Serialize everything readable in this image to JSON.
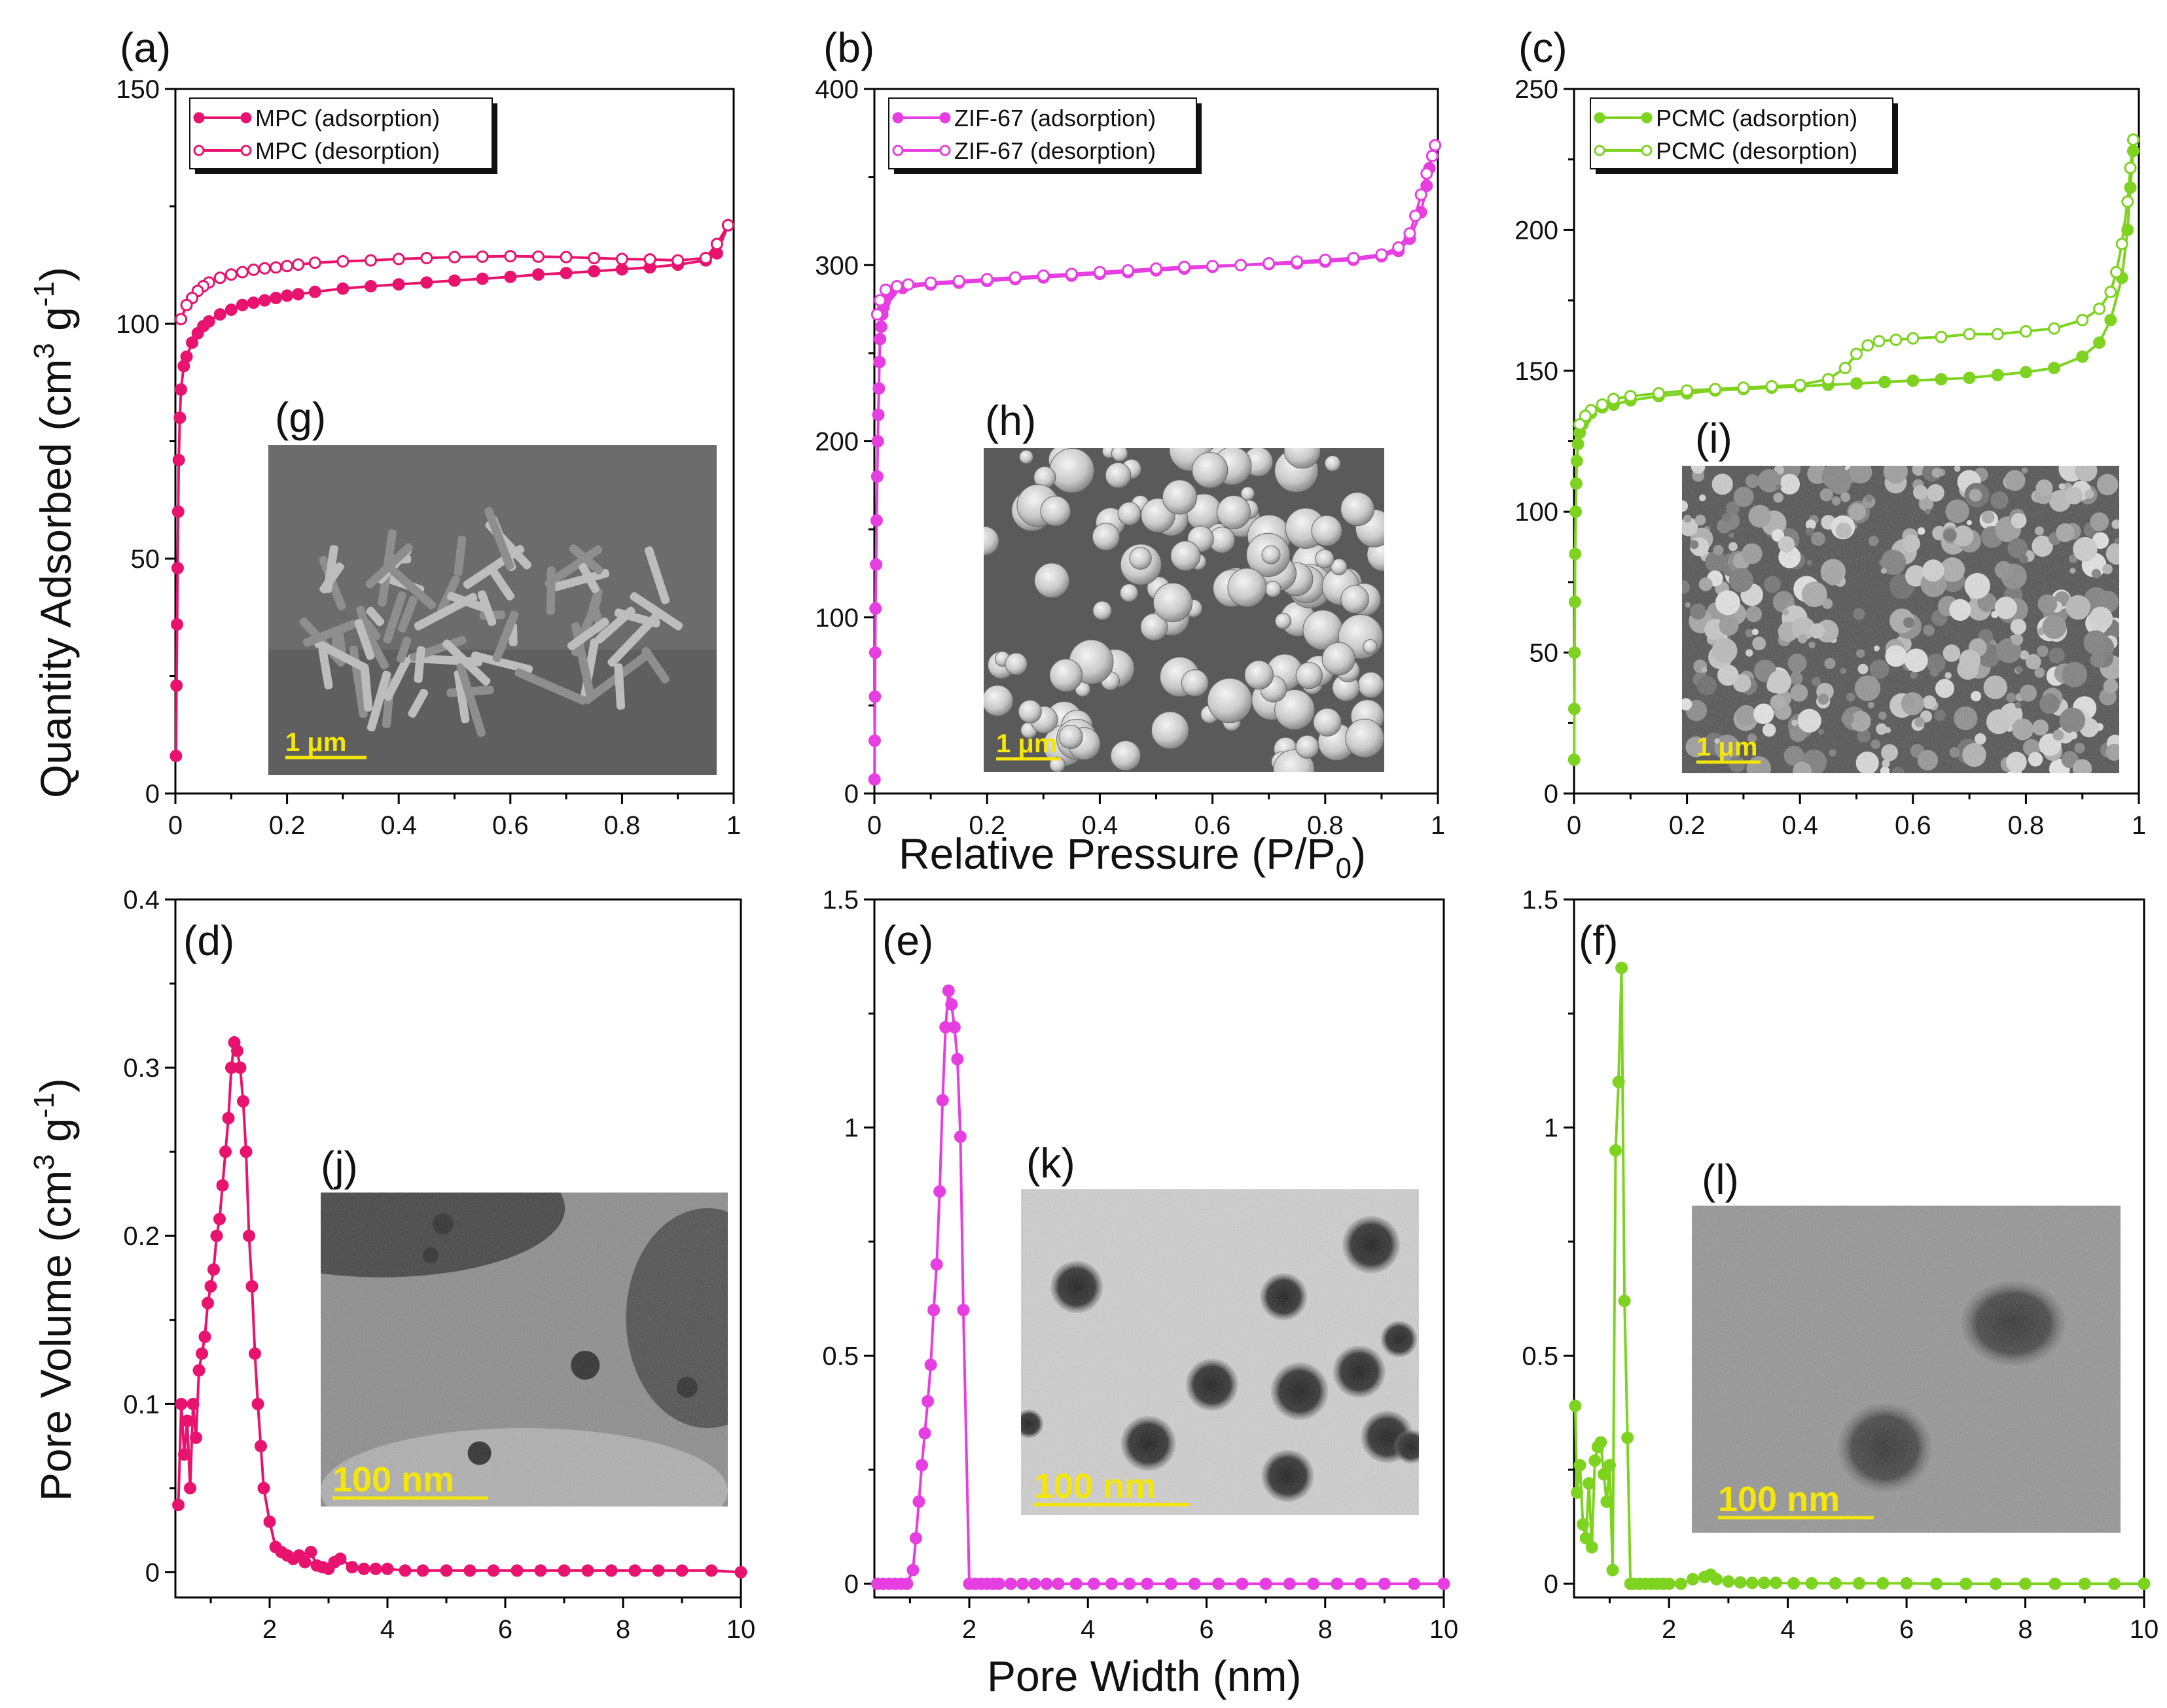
{
  "figure": {
    "xlabel_top": "Relative Pressure (P/P",
    "xlabel_top_sub": "0",
    "xlabel_top_close": ")",
    "ylabel_top": "Quantity Adsorbed (cm",
    "ylabel_top_sup": "3",
    "ylabel_top_mid": " g",
    "ylabel_top_sup2": "-1",
    "ylabel_top_close": ")",
    "xlabel_bottom": "Pore Width (nm)",
    "ylabel_bottom": "Pore Volume (cm",
    "ylabel_bottom_sup": "3",
    "ylabel_bottom_mid": " g",
    "ylabel_bottom_sup2": "-1",
    "ylabel_bottom_close": ")"
  },
  "colors": {
    "mpc": "#e8136e",
    "zif": "#e63ee0",
    "pcmc": "#7ed321",
    "scale_text": "#f5e60a"
  },
  "chart_data": [
    {
      "id": "a",
      "panel_label": "(a)",
      "type": "line",
      "xlim": [
        0,
        1
      ],
      "ylim": [
        0,
        150
      ],
      "xticks": [
        0,
        0.2,
        0.4,
        0.6,
        0.8,
        1
      ],
      "yticks": [
        0,
        50,
        100,
        150
      ],
      "series": [
        {
          "name": "MPC (adsorption)",
          "marker": "filled",
          "x": [
            0.001,
            0.002,
            0.003,
            0.004,
            0.005,
            0.006,
            0.008,
            0.01,
            0.015,
            0.02,
            0.03,
            0.04,
            0.05,
            0.06,
            0.08,
            0.1,
            0.12,
            0.14,
            0.16,
            0.18,
            0.2,
            0.22,
            0.25,
            0.3,
            0.35,
            0.4,
            0.45,
            0.5,
            0.55,
            0.6,
            0.65,
            0.7,
            0.75,
            0.8,
            0.85,
            0.9,
            0.95,
            0.97,
            0.99
          ],
          "y": [
            8,
            23,
            36,
            48,
            60,
            71,
            80,
            86,
            91,
            93,
            96,
            98,
            99.5,
            100.5,
            102,
            103,
            104,
            104.5,
            105,
            105.5,
            106,
            106.3,
            106.8,
            107.5,
            108,
            108.4,
            108.8,
            109.2,
            109.6,
            110,
            110.5,
            110.8,
            111.2,
            111.6,
            112,
            112.6,
            113.5,
            115,
            121
          ]
        },
        {
          "name": "MPC (desorption)",
          "marker": "open",
          "x": [
            0.99,
            0.97,
            0.95,
            0.9,
            0.85,
            0.8,
            0.75,
            0.7,
            0.65,
            0.6,
            0.55,
            0.5,
            0.45,
            0.4,
            0.35,
            0.3,
            0.25,
            0.22,
            0.2,
            0.18,
            0.16,
            0.14,
            0.12,
            0.1,
            0.08,
            0.06,
            0.05,
            0.04,
            0.03,
            0.02,
            0.01
          ],
          "y": [
            121,
            117,
            114,
            113.5,
            113.7,
            113.8,
            114,
            114.2,
            114.3,
            114.4,
            114.3,
            114.2,
            114,
            113.8,
            113.5,
            113.3,
            113,
            112.6,
            112.3,
            112,
            111.8,
            111.5,
            111,
            110.5,
            109.8,
            108.8,
            108,
            107,
            105.5,
            104,
            101
          ]
        }
      ],
      "inset": {
        "label": "(g)",
        "scale": "1 μm",
        "kind": "sem-mpc"
      }
    },
    {
      "id": "b",
      "panel_label": "(b)",
      "type": "line",
      "xlim": [
        0,
        1
      ],
      "ylim": [
        0,
        400
      ],
      "xticks": [
        0,
        0.2,
        0.4,
        0.6,
        0.8,
        1
      ],
      "yticks": [
        0,
        100,
        200,
        300,
        400
      ],
      "series": [
        {
          "name": "ZIF-67 (adsorption)",
          "marker": "filled",
          "x": [
            0.0002,
            0.0005,
            0.001,
            0.0015,
            0.002,
            0.003,
            0.004,
            0.005,
            0.006,
            0.007,
            0.008,
            0.009,
            0.01,
            0.012,
            0.014,
            0.016,
            0.018,
            0.02,
            0.025,
            0.03,
            0.05,
            0.1,
            0.15,
            0.2,
            0.25,
            0.3,
            0.35,
            0.4,
            0.45,
            0.5,
            0.55,
            0.6,
            0.65,
            0.7,
            0.75,
            0.8,
            0.85,
            0.9,
            0.93,
            0.95,
            0.97,
            0.98,
            0.985,
            0.99,
            0.995
          ],
          "y": [
            8,
            30,
            55,
            80,
            105,
            130,
            155,
            180,
            200,
            215,
            230,
            245,
            258,
            265,
            272,
            276,
            279,
            281,
            283,
            285,
            287,
            289,
            290,
            291,
            292,
            293,
            294,
            295,
            296,
            297,
            298,
            299,
            300,
            300.5,
            301,
            302,
            303,
            305,
            308,
            315,
            330,
            345,
            355,
            362,
            368
          ]
        },
        {
          "name": "ZIF-67 (desorption)",
          "marker": "open",
          "x": [
            0.995,
            0.99,
            0.98,
            0.97,
            0.96,
            0.95,
            0.93,
            0.9,
            0.85,
            0.8,
            0.75,
            0.7,
            0.65,
            0.6,
            0.55,
            0.5,
            0.45,
            0.4,
            0.35,
            0.3,
            0.25,
            0.2,
            0.15,
            0.1,
            0.06,
            0.04,
            0.02,
            0.01,
            0.005
          ],
          "y": [
            368,
            362,
            352,
            340,
            328,
            318,
            310,
            306,
            304,
            303,
            302,
            301,
            300,
            299.5,
            299,
            298,
            297,
            296,
            295,
            294,
            293,
            292,
            291,
            290,
            289,
            288,
            286,
            280,
            272
          ]
        }
      ],
      "inset": {
        "label": "(h)",
        "scale": "1 μm",
        "kind": "sem-zif"
      }
    },
    {
      "id": "c",
      "panel_label": "(c)",
      "type": "line",
      "xlim": [
        0,
        1
      ],
      "ylim": [
        0,
        250
      ],
      "xticks": [
        0,
        0.2,
        0.4,
        0.6,
        0.8,
        1
      ],
      "yticks": [
        0,
        50,
        100,
        150,
        200,
        250
      ],
      "series": [
        {
          "name": "PCMC (adsorption)",
          "marker": "filled",
          "x": [
            0.0002,
            0.0005,
            0.001,
            0.0015,
            0.002,
            0.003,
            0.004,
            0.005,
            0.007,
            0.01,
            0.015,
            0.02,
            0.03,
            0.05,
            0.07,
            0.1,
            0.15,
            0.2,
            0.25,
            0.3,
            0.35,
            0.4,
            0.45,
            0.5,
            0.55,
            0.6,
            0.65,
            0.7,
            0.75,
            0.8,
            0.85,
            0.9,
            0.93,
            0.95,
            0.97,
            0.98,
            0.985,
            0.99
          ],
          "y": [
            12,
            30,
            50,
            68,
            85,
            100,
            110,
            118,
            124,
            128,
            131,
            133,
            135,
            137,
            138,
            139.5,
            141,
            142,
            143,
            143.5,
            144,
            144.5,
            145,
            145.5,
            146,
            146.5,
            147,
            147.5,
            148.5,
            149.5,
            151,
            155,
            160,
            168,
            183,
            200,
            215,
            228
          ]
        },
        {
          "name": "PCMC (desorption)",
          "marker": "open",
          "x": [
            0.99,
            0.985,
            0.98,
            0.97,
            0.96,
            0.95,
            0.93,
            0.9,
            0.85,
            0.8,
            0.75,
            0.7,
            0.65,
            0.6,
            0.57,
            0.54,
            0.52,
            0.5,
            0.48,
            0.45,
            0.4,
            0.35,
            0.3,
            0.25,
            0.2,
            0.15,
            0.1,
            0.07,
            0.05,
            0.03,
            0.02,
            0.01
          ],
          "y": [
            232,
            222,
            210,
            195,
            185,
            178,
            172,
            168,
            165,
            164,
            163,
            163,
            162,
            161.5,
            161,
            160.5,
            159,
            156,
            151,
            147,
            145,
            144.5,
            144,
            143.5,
            143,
            142,
            141,
            140,
            138,
            136,
            134,
            131
          ]
        }
      ],
      "inset": {
        "label": "(i)",
        "scale": "1 μm",
        "kind": "sem-pcmc"
      }
    },
    {
      "id": "d",
      "panel_label": "(d)",
      "type": "line",
      "xlim": [
        0.4,
        10
      ],
      "ylim": [
        -0.015,
        0.4
      ],
      "xticks": [
        2,
        4,
        6,
        8,
        10
      ],
      "yticks": [
        0,
        0.1,
        0.2,
        0.3,
        0.4
      ],
      "series": [
        {
          "name": "",
          "marker": "filled",
          "x": [
            0.45,
            0.5,
            0.55,
            0.6,
            0.65,
            0.7,
            0.75,
            0.8,
            0.85,
            0.9,
            0.95,
            1.0,
            1.05,
            1.1,
            1.15,
            1.2,
            1.25,
            1.3,
            1.35,
            1.4,
            1.45,
            1.5,
            1.55,
            1.6,
            1.65,
            1.7,
            1.75,
            1.8,
            1.85,
            1.9,
            2.0,
            2.1,
            2.2,
            2.3,
            2.4,
            2.5,
            2.6,
            2.7,
            2.8,
            2.9,
            3.0,
            3.1,
            3.2,
            3.4,
            3.6,
            3.8,
            4.0,
            4.3,
            4.6,
            5.0,
            5.4,
            5.8,
            6.2,
            6.6,
            7.0,
            7.4,
            7.8,
            8.2,
            8.6,
            9.0,
            9.5,
            10
          ],
          "y": [
            0.04,
            0.1,
            0.07,
            0.09,
            0.05,
            0.1,
            0.08,
            0.12,
            0.13,
            0.14,
            0.16,
            0.17,
            0.18,
            0.2,
            0.21,
            0.23,
            0.25,
            0.27,
            0.3,
            0.315,
            0.31,
            0.3,
            0.28,
            0.25,
            0.2,
            0.17,
            0.13,
            0.1,
            0.075,
            0.05,
            0.03,
            0.015,
            0.012,
            0.01,
            0.008,
            0.01,
            0.006,
            0.012,
            0.004,
            0.003,
            0.002,
            0.006,
            0.008,
            0.003,
            0.002,
            0.002,
            0.002,
            0.001,
            0.001,
            0.001,
            0.001,
            0.001,
            0.001,
            0.001,
            0.001,
            0.001,
            0.001,
            0.001,
            0.001,
            0.001,
            0.001,
            0.0
          ]
        }
      ],
      "inset": {
        "label": "(j)",
        "scale": "100 nm",
        "kind": "tem-mpc"
      }
    },
    {
      "id": "e",
      "panel_label": "(e)",
      "type": "line",
      "xlim": [
        0.4,
        10
      ],
      "ylim": [
        -0.03,
        1.5
      ],
      "xticks": [
        2,
        4,
        6,
        8,
        10
      ],
      "yticks": [
        0,
        0.5,
        1,
        1.5
      ],
      "series": [
        {
          "name": "",
          "marker": "filled",
          "x": [
            0.45,
            0.55,
            0.65,
            0.75,
            0.85,
            0.95,
            1.05,
            1.1,
            1.15,
            1.2,
            1.25,
            1.3,
            1.35,
            1.4,
            1.45,
            1.5,
            1.55,
            1.6,
            1.65,
            1.7,
            1.75,
            1.8,
            1.85,
            1.9,
            2.0,
            2.1,
            2.2,
            2.3,
            2.4,
            2.5,
            2.7,
            2.9,
            3.1,
            3.3,
            3.5,
            3.8,
            4.1,
            4.4,
            4.7,
            5.0,
            5.4,
            5.8,
            6.2,
            6.6,
            7.0,
            7.4,
            7.8,
            8.2,
            8.6,
            9.0,
            9.5,
            10
          ],
          "y": [
            0,
            0,
            0,
            0,
            0,
            0,
            0.03,
            0.1,
            0.18,
            0.26,
            0.33,
            0.4,
            0.48,
            0.6,
            0.7,
            0.86,
            1.06,
            1.22,
            1.3,
            1.27,
            1.22,
            1.15,
            0.98,
            0.6,
            0.0,
            0.0,
            0.0,
            0.0,
            0.0,
            0.0,
            0.0,
            0.0,
            0.0,
            0.0,
            0.0,
            0.0,
            0.0,
            0.0,
            0.0,
            0.0,
            0.0,
            0.0,
            0.0,
            0.0,
            0.0,
            0.0,
            0.0,
            0.0,
            0.0,
            0.0,
            0.0,
            0.0
          ]
        }
      ],
      "inset": {
        "label": "(k)",
        "scale": "100 nm",
        "kind": "tem-zif"
      }
    },
    {
      "id": "f",
      "panel_label": "(f)",
      "type": "line",
      "xlim": [
        0.4,
        10
      ],
      "ylim": [
        -0.03,
        1.5
      ],
      "xticks": [
        2,
        4,
        6,
        8,
        10
      ],
      "yticks": [
        0,
        0.5,
        1,
        1.5
      ],
      "series": [
        {
          "name": "",
          "marker": "filled",
          "x": [
            0.42,
            0.45,
            0.5,
            0.55,
            0.6,
            0.65,
            0.7,
            0.75,
            0.8,
            0.85,
            0.9,
            0.95,
            1.0,
            1.05,
            1.1,
            1.15,
            1.2,
            1.25,
            1.3,
            1.35,
            1.4,
            1.5,
            1.6,
            1.7,
            1.8,
            1.9,
            2.0,
            2.2,
            2.4,
            2.6,
            2.7,
            2.8,
            3.0,
            3.2,
            3.4,
            3.6,
            3.8,
            4.1,
            4.4,
            4.8,
            5.2,
            5.6,
            6.0,
            6.5,
            7.0,
            7.5,
            8.0,
            8.5,
            9.0,
            9.5,
            10
          ],
          "y": [
            0.39,
            0.2,
            0.26,
            0.13,
            0.1,
            0.22,
            0.08,
            0.27,
            0.3,
            0.31,
            0.24,
            0.18,
            0.26,
            0.03,
            0.95,
            1.1,
            1.35,
            0.62,
            0.32,
            0.0,
            0.0,
            0.0,
            0.0,
            0.0,
            0.0,
            0.0,
            0.0,
            0.0,
            0.01,
            0.015,
            0.02,
            0.01,
            0.005,
            0.003,
            0.002,
            0.002,
            0.002,
            0.001,
            0.001,
            0.001,
            0.001,
            0.001,
            0.001,
            0.0,
            0.0,
            0.0,
            0.0,
            0.0,
            0.0,
            0.0,
            0.0
          ]
        }
      ],
      "inset": {
        "label": "(l)",
        "scale": "100 nm",
        "kind": "tem-pcmc"
      }
    }
  ]
}
